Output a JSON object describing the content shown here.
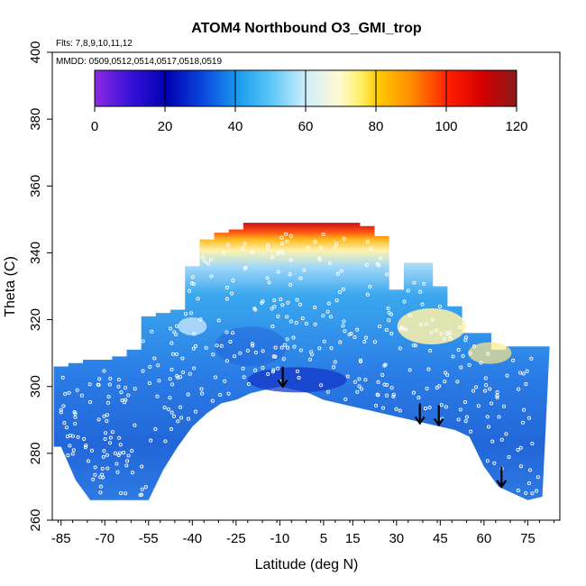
{
  "chart_data": {
    "type": "heatmap",
    "title": "ATOM4 Northbound O3_GMI_trop",
    "subtitle_flights": "Flts: 7,8,9,10,11,12",
    "subtitle_dates": "MMDD: 0509,0512,0514,0517,0518,0519",
    "xlabel": "Latitude (deg N)",
    "ylabel": "Theta (C)",
    "xlim": [
      -88,
      86
    ],
    "ylim": [
      260,
      400
    ],
    "x_ticks": [
      -85,
      -70,
      -55,
      -40,
      -25,
      -10,
      5,
      15,
      30,
      45,
      60,
      75
    ],
    "y_ticks": [
      260,
      280,
      300,
      320,
      340,
      360,
      380,
      400
    ],
    "colorbar": {
      "range": [
        0,
        120
      ],
      "ticks": [
        0,
        20,
        40,
        60,
        80,
        100,
        120
      ],
      "placement": "top-inside"
    },
    "field_surface": {
      "description": "boundary of colored O3 field",
      "lat": [
        -85,
        -80,
        -75,
        -70,
        -65,
        -60,
        -55,
        -50,
        -45,
        -40,
        -35,
        -30,
        -25,
        -20,
        -15,
        -10,
        -5,
        0,
        5,
        10,
        15,
        20,
        25,
        30,
        35,
        40,
        45,
        50,
        55,
        60,
        65,
        70,
        75,
        80
      ],
      "theta_bottom": [
        282,
        272,
        266,
        266,
        266,
        266,
        266,
        275,
        282,
        288,
        292,
        295,
        296,
        298,
        299,
        300,
        299,
        298,
        296,
        295,
        294,
        293,
        292,
        291,
        290,
        289,
        288,
        287,
        285,
        276,
        270,
        268,
        266,
        267
      ],
      "theta_top": [
        306,
        307,
        308,
        308,
        309,
        311,
        321,
        322,
        323,
        336,
        344,
        346,
        347,
        349,
        349,
        349,
        349,
        349,
        349,
        349,
        349,
        348,
        345,
        329,
        337,
        337,
        330,
        324,
        316,
        316,
        311,
        312,
        312,
        312
      ]
    },
    "descent_arrows_lat": [
      -9,
      38,
      44.5,
      66
    ],
    "descent_arrows_theta": [
      300,
      289,
      288.5,
      270
    ]
  }
}
